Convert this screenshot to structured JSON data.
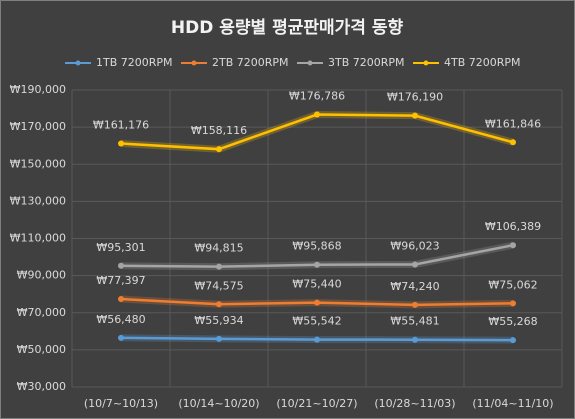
{
  "chart_data": {
    "type": "line",
    "title": "HDD 용량별 평균판매가격 동향",
    "categories": [
      "(10/7~10/13)",
      "(10/14~10/20)",
      "(10/21~10/27)",
      "(10/28~11/03)",
      "(11/04~11/10)"
    ],
    "series": [
      {
        "name": "1TB 7200RPM",
        "color": "#5b9bd5",
        "values": [
          56480,
          55934,
          55542,
          55481,
          55268
        ],
        "value_labels": [
          "₩56,480",
          "₩55,934",
          "₩55,542",
          "₩55,481",
          "₩55,268"
        ]
      },
      {
        "name": "2TB 7200RPM",
        "color": "#ed7d31",
        "values": [
          77397,
          74575,
          75440,
          74240,
          75062
        ],
        "value_labels": [
          "₩77,397",
          "₩74,575",
          "₩75,440",
          "₩74,240",
          "₩75,062"
        ]
      },
      {
        "name": "3TB 7200RPM",
        "color": "#a5a5a5",
        "values": [
          95301,
          94815,
          95868,
          96023,
          106389
        ],
        "value_labels": [
          "₩95,301",
          "₩94,815",
          "₩95,868",
          "₩96,023",
          "₩106,389"
        ]
      },
      {
        "name": "4TB 7200RPM",
        "color": "#ffc000",
        "values": [
          161176,
          158116,
          176786,
          176190,
          161846
        ],
        "value_labels": [
          "₩161,176",
          "₩158,116",
          "₩176,786",
          "₩176,190",
          "₩161,846"
        ]
      }
    ],
    "ylim": [
      30000,
      190000
    ],
    "yticks": [
      {
        "value": 30000,
        "label": "₩30,000"
      },
      {
        "value": 50000,
        "label": "₩50,000"
      },
      {
        "value": 70000,
        "label": "₩70,000"
      },
      {
        "value": 90000,
        "label": "₩90,000"
      },
      {
        "value": 110000,
        "label": "₩110,000"
      },
      {
        "value": 130000,
        "label": "₩130,000"
      },
      {
        "value": 150000,
        "label": "₩150,000"
      },
      {
        "value": 170000,
        "label": "₩170,000"
      },
      {
        "value": 190000,
        "label": "₩190,000"
      }
    ],
    "grid": true
  }
}
